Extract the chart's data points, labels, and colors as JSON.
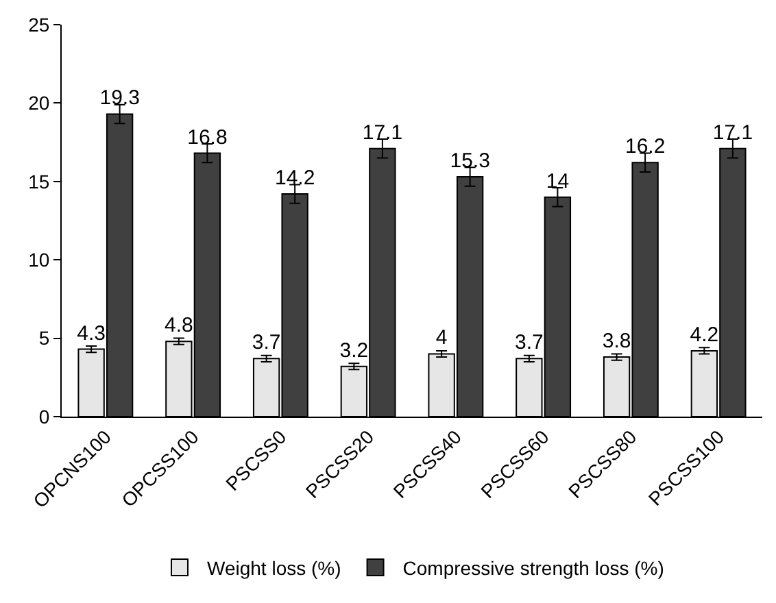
{
  "chart_data": {
    "type": "bar",
    "categories": [
      "OPCNS100",
      "OPCSS100",
      "PSCSS0",
      "PSCSS20",
      "PSCSS40",
      "PSCSS60",
      "PSCSS80",
      "PSCSS100"
    ],
    "series": [
      {
        "name": "Weight loss (%)",
        "color": "#e6e6e6",
        "values": [
          4.3,
          4.8,
          3.7,
          3.2,
          4,
          3.7,
          3.8,
          4.2
        ],
        "errors": [
          0.2,
          0.2,
          0.2,
          0.2,
          0.2,
          0.2,
          0.2,
          0.2
        ]
      },
      {
        "name": "Compressive strength loss (%)",
        "color": "#404040",
        "values": [
          19.3,
          16.8,
          14.2,
          17.1,
          15.3,
          14,
          16.2,
          17.1
        ],
        "errors": [
          0.6,
          0.6,
          0.6,
          0.6,
          0.6,
          0.6,
          0.6,
          0.6
        ]
      }
    ],
    "ylim": [
      0,
      25
    ],
    "yticks": [
      0,
      5,
      10,
      15,
      20,
      25
    ],
    "grid": false,
    "legend": "bottom",
    "data_labels": true
  }
}
